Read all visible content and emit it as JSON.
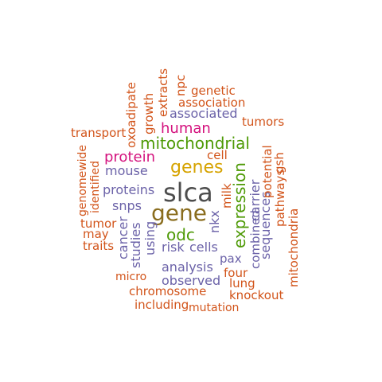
{
  "palette": {
    "gray": "#4d4d4d",
    "olive": "#8a6d1e",
    "green": "#4e9a06",
    "gold": "#d6a300",
    "magenta": "#d4137e",
    "purple": "#6b62a8",
    "orange": "#d2541a"
  },
  "words": [
    {
      "text": "slca",
      "color": "gray"
    },
    {
      "text": "gene",
      "color": "olive"
    },
    {
      "text": "genes",
      "color": "gold"
    },
    {
      "text": "expression",
      "color": "green"
    },
    {
      "text": "mitochondrial",
      "color": "green"
    },
    {
      "text": "odc",
      "color": "green"
    },
    {
      "text": "protein",
      "color": "magenta"
    },
    {
      "text": "human",
      "color": "magenta"
    },
    {
      "text": "mouse",
      "color": "purple"
    },
    {
      "text": "proteins",
      "color": "purple"
    },
    {
      "text": "associated",
      "color": "purple"
    },
    {
      "text": "snps",
      "color": "purple"
    },
    {
      "text": "nkx",
      "color": "purple"
    },
    {
      "text": "cells",
      "color": "purple"
    },
    {
      "text": "risk",
      "color": "purple"
    },
    {
      "text": "studies",
      "color": "purple"
    },
    {
      "text": "using",
      "color": "purple"
    },
    {
      "text": "cancer",
      "color": "purple"
    },
    {
      "text": "analysis",
      "color": "purple"
    },
    {
      "text": "observed",
      "color": "purple"
    },
    {
      "text": "pax",
      "color": "purple"
    },
    {
      "text": "combined",
      "color": "purple"
    },
    {
      "text": "carrier",
      "color": "purple"
    },
    {
      "text": "sequences",
      "color": "purple"
    },
    {
      "text": "genetic",
      "color": "orange"
    },
    {
      "text": "association",
      "color": "orange"
    },
    {
      "text": "tumors",
      "color": "orange"
    },
    {
      "text": "transport",
      "color": "orange"
    },
    {
      "text": "oxoadipate",
      "color": "orange"
    },
    {
      "text": "growth",
      "color": "orange"
    },
    {
      "text": "extracts",
      "color": "orange"
    },
    {
      "text": "npc",
      "color": "orange"
    },
    {
      "text": "cell",
      "color": "orange"
    },
    {
      "text": "potential",
      "color": "orange"
    },
    {
      "text": "gsh",
      "color": "orange"
    },
    {
      "text": "pathways",
      "color": "orange"
    },
    {
      "text": "genomewide",
      "color": "orange"
    },
    {
      "text": "identified",
      "color": "orange"
    },
    {
      "text": "milk",
      "color": "orange"
    },
    {
      "text": "tumor",
      "color": "orange"
    },
    {
      "text": "may",
      "color": "orange"
    },
    {
      "text": "traits",
      "color": "orange"
    },
    {
      "text": "mitochondria",
      "color": "orange"
    },
    {
      "text": "micro",
      "color": "orange"
    },
    {
      "text": "four",
      "color": "orange"
    },
    {
      "text": "lung",
      "color": "orange"
    },
    {
      "text": "chromosome",
      "color": "orange"
    },
    {
      "text": "knockout",
      "color": "orange"
    },
    {
      "text": "including",
      "color": "orange"
    },
    {
      "text": "mutation",
      "color": "orange"
    }
  ]
}
